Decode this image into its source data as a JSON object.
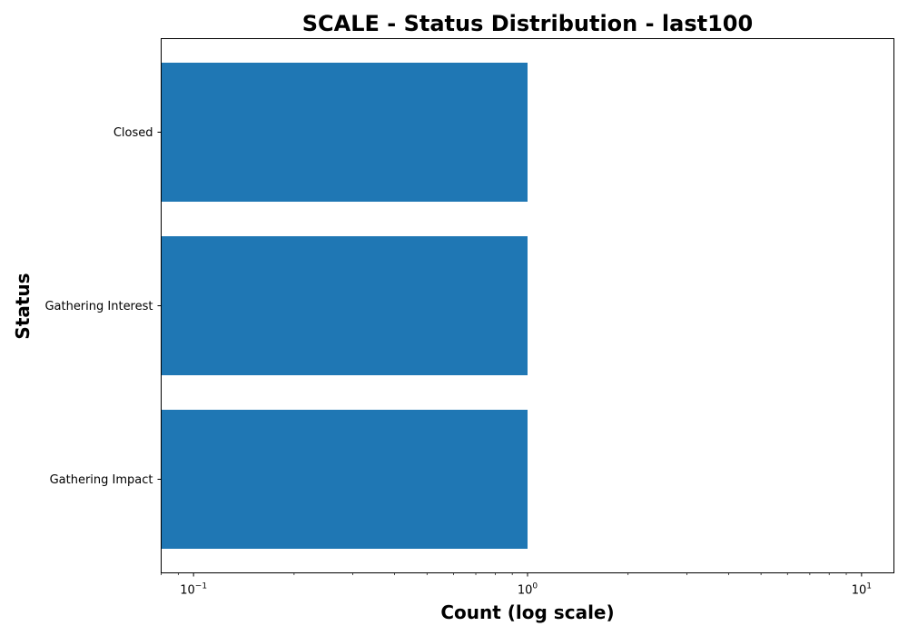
{
  "chart_data": {
    "type": "bar",
    "orientation": "horizontal",
    "title": "SCALE - Status Distribution - last100",
    "xlabel": "Count (log scale)",
    "ylabel": "Status",
    "x_scale": "log",
    "xlim": [
      0.08,
      12.5
    ],
    "x_ticks": [
      {
        "value": 0.1,
        "base": "10",
        "exponent": "−1"
      },
      {
        "value": 1,
        "base": "10",
        "exponent": "0"
      },
      {
        "value": 10,
        "base": "10",
        "exponent": "1"
      }
    ],
    "categories": [
      "Closed",
      "Gathering Interest",
      "Gathering Impact"
    ],
    "values": [
      1,
      1,
      1
    ],
    "bar_color": "#1f77b4",
    "grid": false,
    "legend": "none"
  }
}
